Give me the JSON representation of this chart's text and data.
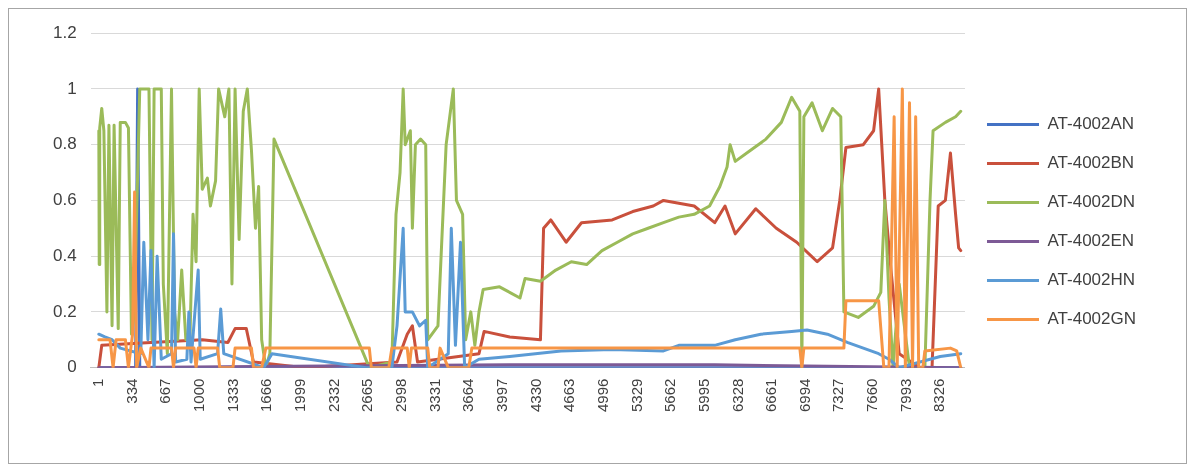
{
  "chart_data": {
    "type": "line",
    "xlim": [
      -80,
      8570
    ],
    "xticks": [
      1,
      334,
      667,
      1000,
      1333,
      1666,
      1999,
      2332,
      2665,
      2998,
      3331,
      3664,
      3997,
      4330,
      4663,
      4996,
      5329,
      5662,
      5995,
      6328,
      6661,
      6994,
      7327,
      7660,
      7993,
      8326
    ],
    "ylim": [
      0,
      1.2
    ],
    "yticks": [
      0,
      0.2,
      0.4,
      0.6,
      0.8,
      1,
      1.2
    ],
    "grid": "y",
    "legend": "right",
    "marker": "none",
    "line_style": "solid",
    "series": [
      {
        "name": "AT-4002AN",
        "color": "#4472c4",
        "x": [
          1,
          365,
          385,
          406,
          8528
        ],
        "values": [
          0,
          0,
          1,
          0,
          0
        ]
      },
      {
        "name": "AT-4002BN",
        "color": "#c9503c",
        "x": [
          1,
          30,
          517,
          1024,
          1278,
          1349,
          1460,
          1531,
          2038,
          2951,
          3052,
          3103,
          3154,
          3762,
          3813,
          4066,
          4370,
          4401,
          4472,
          4624,
          4776,
          5080,
          5283,
          5486,
          5587,
          5891,
          6094,
          6196,
          6297,
          6500,
          6703,
          6905,
          7108,
          7260,
          7331,
          7392,
          7564,
          7666,
          7716,
          7777,
          7838,
          7919,
          8122,
          8244,
          8305,
          8376,
          8426,
          8477,
          8507,
          8528
        ],
        "values": [
          0,
          0.08,
          0.09,
          0.1,
          0.09,
          0.14,
          0.14,
          0.02,
          0,
          0.02,
          0.12,
          0.15,
          0.02,
          0.05,
          0.13,
          0.11,
          0.1,
          0.5,
          0.53,
          0.45,
          0.52,
          0.53,
          0.56,
          0.58,
          0.6,
          0.58,
          0.52,
          0.58,
          0.48,
          0.57,
          0.5,
          0.45,
          0.38,
          0.43,
          0.6,
          0.79,
          0.8,
          0.85,
          1,
          0.6,
          0.35,
          0.05,
          0,
          0,
          0.58,
          0.6,
          0.77,
          0.55,
          0.43,
          0.42
        ]
      },
      {
        "name": "AT-4002DN",
        "color": "#9bbb59",
        "x": [
          1,
          5,
          10,
          30,
          51,
          81,
          101,
          132,
          152,
          193,
          213,
          264,
          294,
          324,
          355,
          375,
          406,
          497,
          527,
          548,
          619,
          639,
          679,
          720,
          750,
          781,
          821,
          862,
          902,
          933,
          963,
          994,
          1024,
          1075,
          1105,
          1156,
          1186,
          1247,
          1288,
          1318,
          1349,
          1389,
          1430,
          1470,
          1511,
          1551,
          1582,
          1612,
          1653,
          1693,
          1734,
          2677,
          2900,
          2941,
          2981,
          3012,
          3032,
          3083,
          3103,
          3133,
          3184,
          3235,
          3255,
          3356,
          3437,
          3508,
          3539,
          3600,
          3630,
          3681,
          3721,
          3762,
          3803,
          3965,
          4168,
          4218,
          4370,
          4522,
          4675,
          4827,
          4979,
          5131,
          5283,
          5435,
          5587,
          5739,
          5891,
          6043,
          6145,
          6216,
          6246,
          6297,
          6449,
          6601,
          6753,
          6855,
          6936,
          6956,
          6976,
          7057,
          7159,
          7260,
          7341,
          7372,
          7514,
          7666,
          7737,
          7777,
          7818,
          7858,
          7919,
          8021,
          8173,
          8224,
          8254,
          8376,
          8477,
          8528
        ],
        "values": [
          0.85,
          0.37,
          0.86,
          0.93,
          0.85,
          0.2,
          0.87,
          0.15,
          0.87,
          0.14,
          0.88,
          0.88,
          0.86,
          0.12,
          0.2,
          0.55,
          1,
          1,
          0.1,
          1,
          1,
          0.3,
          0.05,
          1,
          0.2,
          0.1,
          0.35,
          0.1,
          0.1,
          0.55,
          0.38,
          1,
          0.64,
          0.68,
          0.58,
          0.67,
          1,
          0.9,
          1,
          0.3,
          1,
          0.46,
          0.92,
          1,
          0.78,
          0.5,
          0.65,
          0.1,
          0,
          0.05,
          0.82,
          0,
          0.02,
          0.55,
          0.7,
          1,
          0.8,
          0.85,
          0.5,
          0.8,
          0.82,
          0.8,
          0.1,
          0.15,
          0.8,
          1,
          0.6,
          0.55,
          0.1,
          0.2,
          0.08,
          0.2,
          0.28,
          0.29,
          0.25,
          0.32,
          0.31,
          0.35,
          0.38,
          0.37,
          0.42,
          0.45,
          0.48,
          0.5,
          0.52,
          0.54,
          0.55,
          0.58,
          0.65,
          0.72,
          0.8,
          0.74,
          0.78,
          0.82,
          0.88,
          0.97,
          0.92,
          0,
          0.9,
          0.95,
          0.85,
          0.93,
          0.9,
          0.2,
          0.18,
          0.22,
          0.27,
          0.6,
          0.25,
          0,
          0.3,
          0,
          0,
          0.6,
          0.85,
          0.88,
          0.9,
          0.92
        ]
      },
      {
        "name": "AT-4002EN",
        "color": "#7d5a96",
        "x": [
          1,
          4066,
          6094,
          8528
        ],
        "values": [
          0,
          0.01,
          0.01,
          0
        ]
      },
      {
        "name": "AT-4002HN",
        "color": "#5b9bd5",
        "x": [
          1,
          61,
          132,
          213,
          416,
          446,
          487,
          517,
          548,
          578,
          619,
          720,
          740,
          761,
          872,
          892,
          913,
          984,
          1004,
          1176,
          1207,
          1237,
          1633,
          1714,
          2647,
          2900,
          2951,
          3012,
          3032,
          3103,
          3174,
          3235,
          3255,
          3458,
          3488,
          3529,
          3579,
          3620,
          3762,
          4066,
          4573,
          5080,
          5587,
          5739,
          6094,
          6297,
          6550,
          6855,
          7007,
          7209,
          7412,
          7716,
          7818,
          7919,
          8325,
          8528
        ],
        "values": [
          0.12,
          0.11,
          0.1,
          0.07,
          0.05,
          0.45,
          0.1,
          0.42,
          0,
          0.4,
          0.03,
          0.05,
          0.48,
          0.02,
          0.03,
          0.2,
          0.02,
          0.35,
          0.03,
          0.05,
          0.21,
          0.05,
          0,
          0.05,
          0,
          0,
          0.15,
          0.5,
          0.2,
          0.2,
          0.15,
          0.17,
          0,
          0.05,
          0.5,
          0.08,
          0.45,
          0,
          0.03,
          0.04,
          0.06,
          0.065,
          0.06,
          0.08,
          0.08,
          0.1,
          0.12,
          0.13,
          0.135,
          0.12,
          0.09,
          0.05,
          0.03,
          0,
          0.04,
          0.05
        ]
      },
      {
        "name": "AT-4002GN",
        "color": "#f79646",
        "x": [
          1,
          112,
          142,
          172,
          264,
          294,
          335,
          355,
          375,
          416,
          497,
          517,
          720,
          740,
          761,
          943,
          963,
          984,
          1176,
          1197,
          1328,
          1349,
          1511,
          1531,
          1612,
          1653,
          2677,
          2697,
          2870,
          2900,
          3052,
          3072,
          3093,
          3255,
          3275,
          3356,
          3377,
          3458,
          3661,
          3691,
          5080,
          6094,
          6936,
          6956,
          6976,
          7372,
          7392,
          7716,
          7767,
          7818,
          7869,
          7899,
          7950,
          7980,
          8021,
          8051,
          8082,
          8112,
          8153,
          8173,
          8426,
          8488,
          8528
        ],
        "values": [
          0.1,
          0.1,
          0,
          0.1,
          0.1,
          0,
          0.12,
          0.63,
          0,
          0.07,
          0,
          0.07,
          0.07,
          0,
          0.07,
          0.07,
          0,
          0.07,
          0.07,
          0,
          0,
          0.07,
          0.07,
          0,
          0,
          0.07,
          0.07,
          0,
          0,
          0.07,
          0.07,
          0,
          0.07,
          0.07,
          0,
          0,
          0.07,
          0,
          0,
          0.07,
          0.07,
          0.07,
          0.07,
          0,
          0.07,
          0.07,
          0.24,
          0.24,
          0,
          0,
          0.9,
          0,
          1,
          0,
          0.95,
          0,
          0.9,
          0,
          0,
          0.06,
          0.07,
          0.06,
          0
        ]
      }
    ]
  }
}
